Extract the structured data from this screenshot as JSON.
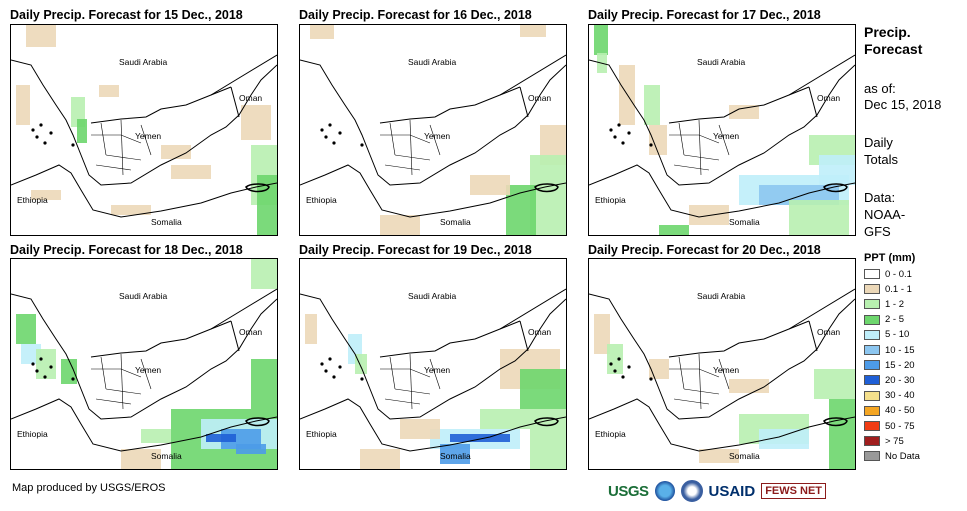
{
  "panels": [
    {
      "title": "Daily Precip. Forecast for 15 Dec., 2018"
    },
    {
      "title": "Daily Precip. Forecast for 16 Dec., 2018"
    },
    {
      "title": "Daily Precip. Forecast for 17 Dec., 2018"
    },
    {
      "title": "Daily Precip. Forecast for 18 Dec., 2018"
    },
    {
      "title": "Daily Precip. Forecast for 19 Dec., 2018"
    },
    {
      "title": "Daily Precip. Forecast for 20 Dec., 2018"
    }
  ],
  "map_labels": {
    "saudi": "Saudi Arabia",
    "oman": "Oman",
    "yemen": "Yemen",
    "ethiopia": "Ethiopia",
    "somalia": "Somalia"
  },
  "legend": {
    "title_line1": "Precip.",
    "title_line2": "Forecast",
    "asof_line1": "as of:",
    "asof_line2": "Dec 15, 2018",
    "daily_line1": "Daily",
    "daily_line2": "Totals",
    "data_line1": "Data:",
    "data_line2": "NOAA-",
    "data_line3": "GFS",
    "ppt_title": "PPT (mm)",
    "classes": [
      {
        "label": "0 - 0.1",
        "color": "#ffffff"
      },
      {
        "label": "0.1 - 1",
        "color": "#ecd8b8"
      },
      {
        "label": "1 - 2",
        "color": "#b8f0b0"
      },
      {
        "label": "2 - 5",
        "color": "#6dd66d"
      },
      {
        "label": "5 - 10",
        "color": "#bfeefa"
      },
      {
        "label": "10 - 15",
        "color": "#8cc6f0"
      },
      {
        "label": "15 - 20",
        "color": "#4d9be8"
      },
      {
        "label": "20 - 30",
        "color": "#1f5fd6"
      },
      {
        "label": "30 - 40",
        "color": "#f5e08c"
      },
      {
        "label": "40 - 50",
        "color": "#f5a623"
      },
      {
        "label": "50 - 75",
        "color": "#f03c14"
      },
      {
        "label": "> 75",
        "color": "#a01e1e"
      },
      {
        "label": "No Data",
        "color": "#999999"
      }
    ]
  },
  "footer": {
    "credit": "Map produced by USGS/EROS",
    "logo_usgs": "USGS",
    "logo_usaid": "USAID",
    "logo_fews": "FEWS NET"
  }
}
